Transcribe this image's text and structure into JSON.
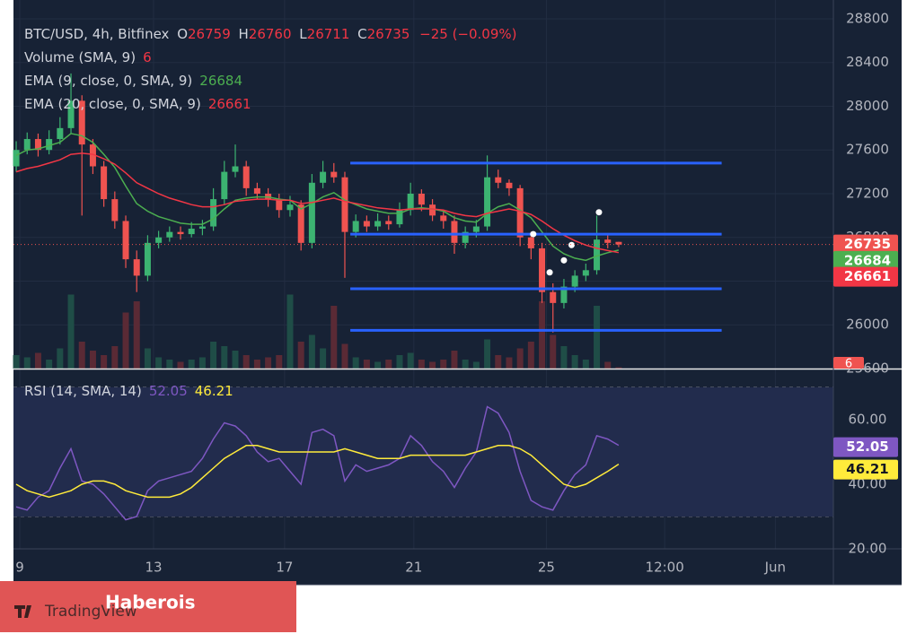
{
  "chart_data": {
    "type": "candlestick",
    "header": {
      "symbol": "BTC/USD, 4h, Bitfinex",
      "open_label": "O",
      "open": 26759,
      "high_label": "H",
      "high": 26760,
      "low_label": "L",
      "low": 26711,
      "close_label": "C",
      "close": 26735,
      "change": "−25 (−0.09%)"
    },
    "volume_label": "Volume (SMA, 9)",
    "up_color": "#3cb371",
    "down_color": "#ef5350",
    "candles": [
      [
        27450,
        27680,
        27400,
        27600
      ],
      [
        27600,
        27760,
        27560,
        27700
      ],
      [
        27700,
        27750,
        27540,
        27600
      ],
      [
        27600,
        27780,
        27560,
        27700
      ],
      [
        27700,
        27900,
        27650,
        27800
      ],
      [
        27800,
        28300,
        27750,
        28050
      ],
      [
        28050,
        28100,
        27000,
        27650
      ],
      [
        27650,
        27700,
        27380,
        27450
      ],
      [
        27450,
        27500,
        27080,
        27150
      ],
      [
        27150,
        27220,
        26880,
        26950
      ],
      [
        26950,
        27000,
        26520,
        26600
      ],
      [
        26600,
        26680,
        26300,
        26450
      ],
      [
        26450,
        26820,
        26400,
        26750
      ],
      [
        26750,
        26860,
        26700,
        26800
      ],
      [
        26800,
        26900,
        26760,
        26850
      ],
      [
        26850,
        26900,
        26780,
        26830
      ],
      [
        26830,
        26940,
        26800,
        26880
      ],
      [
        26880,
        26960,
        26820,
        26900
      ],
      [
        26900,
        27250,
        26860,
        27150
      ],
      [
        27150,
        27500,
        27100,
        27400
      ],
      [
        27400,
        27650,
        27350,
        27450
      ],
      [
        27450,
        27500,
        27180,
        27250
      ],
      [
        27250,
        27300,
        27150,
        27200
      ],
      [
        27200,
        27250,
        27080,
        27150
      ],
      [
        27150,
        27200,
        26980,
        27050
      ],
      [
        27050,
        27180,
        26990,
        27100
      ],
      [
        27100,
        27140,
        26680,
        26750
      ],
      [
        26750,
        27380,
        26700,
        27300
      ],
      [
        27300,
        27500,
        27250,
        27400
      ],
      [
        27400,
        27480,
        27300,
        27350
      ],
      [
        27350,
        27400,
        26430,
        26850
      ],
      [
        26850,
        27010,
        26800,
        26950
      ],
      [
        26950,
        27000,
        26850,
        26900
      ],
      [
        26900,
        27020,
        26860,
        26950
      ],
      [
        26950,
        27000,
        26870,
        26920
      ],
      [
        26920,
        27120,
        26890,
        27050
      ],
      [
        27050,
        27300,
        27000,
        27200
      ],
      [
        27200,
        27240,
        27040,
        27100
      ],
      [
        27100,
        27150,
        26950,
        27000
      ],
      [
        27000,
        27050,
        26880,
        26950
      ],
      [
        26950,
        27000,
        26650,
        26750
      ],
      [
        26750,
        26900,
        26700,
        26850
      ],
      [
        26850,
        26960,
        26800,
        26900
      ],
      [
        26900,
        27550,
        26860,
        27350
      ],
      [
        27350,
        27420,
        27250,
        27300
      ],
      [
        27300,
        27330,
        27180,
        27250
      ],
      [
        27250,
        27280,
        26720,
        26800
      ],
      [
        26800,
        26850,
        26600,
        26700
      ],
      [
        26700,
        26750,
        26200,
        26300
      ],
      [
        26300,
        26380,
        25930,
        26200
      ],
      [
        26200,
        26420,
        26150,
        26350
      ],
      [
        26350,
        26500,
        26300,
        26450
      ],
      [
        26450,
        26560,
        26400,
        26500
      ],
      [
        26500,
        27000,
        26460,
        26780
      ],
      [
        26780,
        26820,
        26700,
        26750
      ],
      [
        26759,
        26760,
        26711,
        26735
      ]
    ],
    "volume": [
      60,
      50,
      70,
      40,
      90,
      330,
      120,
      80,
      60,
      100,
      250,
      300,
      90,
      50,
      40,
      30,
      40,
      50,
      120,
      100,
      80,
      60,
      40,
      50,
      60,
      330,
      120,
      150,
      90,
      280,
      110,
      50,
      40,
      30,
      40,
      60,
      70,
      40,
      30,
      40,
      80,
      40,
      30,
      130,
      60,
      50,
      90,
      120,
      300,
      150,
      100,
      60,
      40,
      280,
      30,
      6
    ],
    "volume_ylim": [
      0,
      400
    ],
    "ema": [
      {
        "name": "EMA (9, close, 0, SMA, 9)",
        "color": "#4caf50",
        "values": [
          27550,
          27600,
          27610,
          27640,
          27670,
          27750,
          27730,
          27670,
          27560,
          27440,
          27270,
          27110,
          27040,
          26990,
          26960,
          26930,
          26920,
          26920,
          26970,
          27060,
          27140,
          27160,
          27170,
          27170,
          27150,
          27140,
          27060,
          27110,
          27170,
          27210,
          27140,
          27100,
          27060,
          27040,
          27020,
          27020,
          27060,
          27070,
          27060,
          27040,
          26980,
          26950,
          26940,
          27020,
          27080,
          27110,
          27050,
          26980,
          26850,
          26720,
          26650,
          26610,
          26590,
          26630,
          26660,
          26684
        ]
      },
      {
        "name": "EMA (20, close, 0, SMA, 9)",
        "color": "#f23645",
        "values": [
          27400,
          27430,
          27450,
          27480,
          27510,
          27560,
          27570,
          27560,
          27520,
          27470,
          27390,
          27300,
          27250,
          27200,
          27160,
          27130,
          27100,
          27080,
          27080,
          27100,
          27130,
          27140,
          27150,
          27150,
          27140,
          27140,
          27110,
          27120,
          27140,
          27160,
          27130,
          27110,
          27090,
          27070,
          27060,
          27050,
          27060,
          27060,
          27060,
          27050,
          27020,
          27000,
          26990,
          27020,
          27040,
          27060,
          27040,
          27010,
          26950,
          26880,
          26820,
          26770,
          26730,
          26700,
          26680,
          26661
        ]
      }
    ],
    "ylim": [
      25600,
      28972
    ],
    "yticks": [
      25600,
      26000,
      26400,
      26800,
      27200,
      27600,
      28000,
      28400,
      28800
    ],
    "xlim": [
      -0.25,
      74.6
    ],
    "xticks": [
      {
        "value": 0.33,
        "label": "9"
      },
      {
        "value": 12.54,
        "label": "13"
      },
      {
        "value": 24.5,
        "label": "17"
      },
      {
        "value": 36.3,
        "label": "21"
      },
      {
        "value": 48.4,
        "label": "25"
      },
      {
        "value": 59.2,
        "label": "12:00"
      },
      {
        "value": 69.3,
        "label": "Jun"
      }
    ],
    "grid": true,
    "levels": [
      27480,
      26830,
      26330,
      25950
    ],
    "level_span": [
      30.5,
      64.4
    ],
    "level_color": "#2962ff",
    "markers": {
      "x": [
        47.2,
        48.7,
        50.0,
        50.7,
        53.2
      ],
      "y": [
        26830,
        26480,
        26590,
        26730,
        27030
      ]
    },
    "rsi": {
      "label": "RSI (14, SMA, 14)",
      "ylim": [
        20.3,
        73.3
      ],
      "yticks": [
        {
          "value": 20,
          "label": "20.00"
        },
        {
          "value": 40,
          "label": "40.00"
        },
        {
          "value": 60,
          "label": "60.00"
        }
      ],
      "bands": [
        30,
        70
      ],
      "series": [
        {
          "color": "#7e57c2",
          "values": [
            33,
            32,
            36,
            38,
            45,
            51,
            41,
            40,
            37,
            33,
            29,
            30,
            38,
            41,
            42,
            43,
            44,
            48,
            54,
            59,
            58,
            55,
            50,
            47,
            48,
            44,
            40,
            56,
            57,
            55,
            41,
            46,
            44,
            45,
            46,
            48,
            55,
            52,
            47,
            44,
            39,
            45,
            50,
            64,
            62,
            56,
            44,
            35,
            33,
            32,
            38,
            43,
            46,
            55,
            54,
            52.05
          ]
        },
        {
          "color": "#ffeb3b",
          "values": [
            40,
            38,
            37,
            36,
            37,
            38,
            40,
            41,
            41,
            40,
            38,
            37,
            36,
            36,
            36,
            37,
            39,
            42,
            45,
            48,
            50,
            52,
            52,
            51,
            50,
            50,
            50,
            50,
            50,
            50,
            51,
            50,
            49,
            48,
            48,
            48,
            49,
            49,
            49,
            49,
            49,
            49,
            50,
            51,
            52,
            52,
            51,
            49,
            46,
            43,
            40,
            39,
            40,
            42,
            44,
            46.21
          ]
        }
      ]
    },
    "banner": "Haberois",
    "watermark": "TradingView"
  }
}
